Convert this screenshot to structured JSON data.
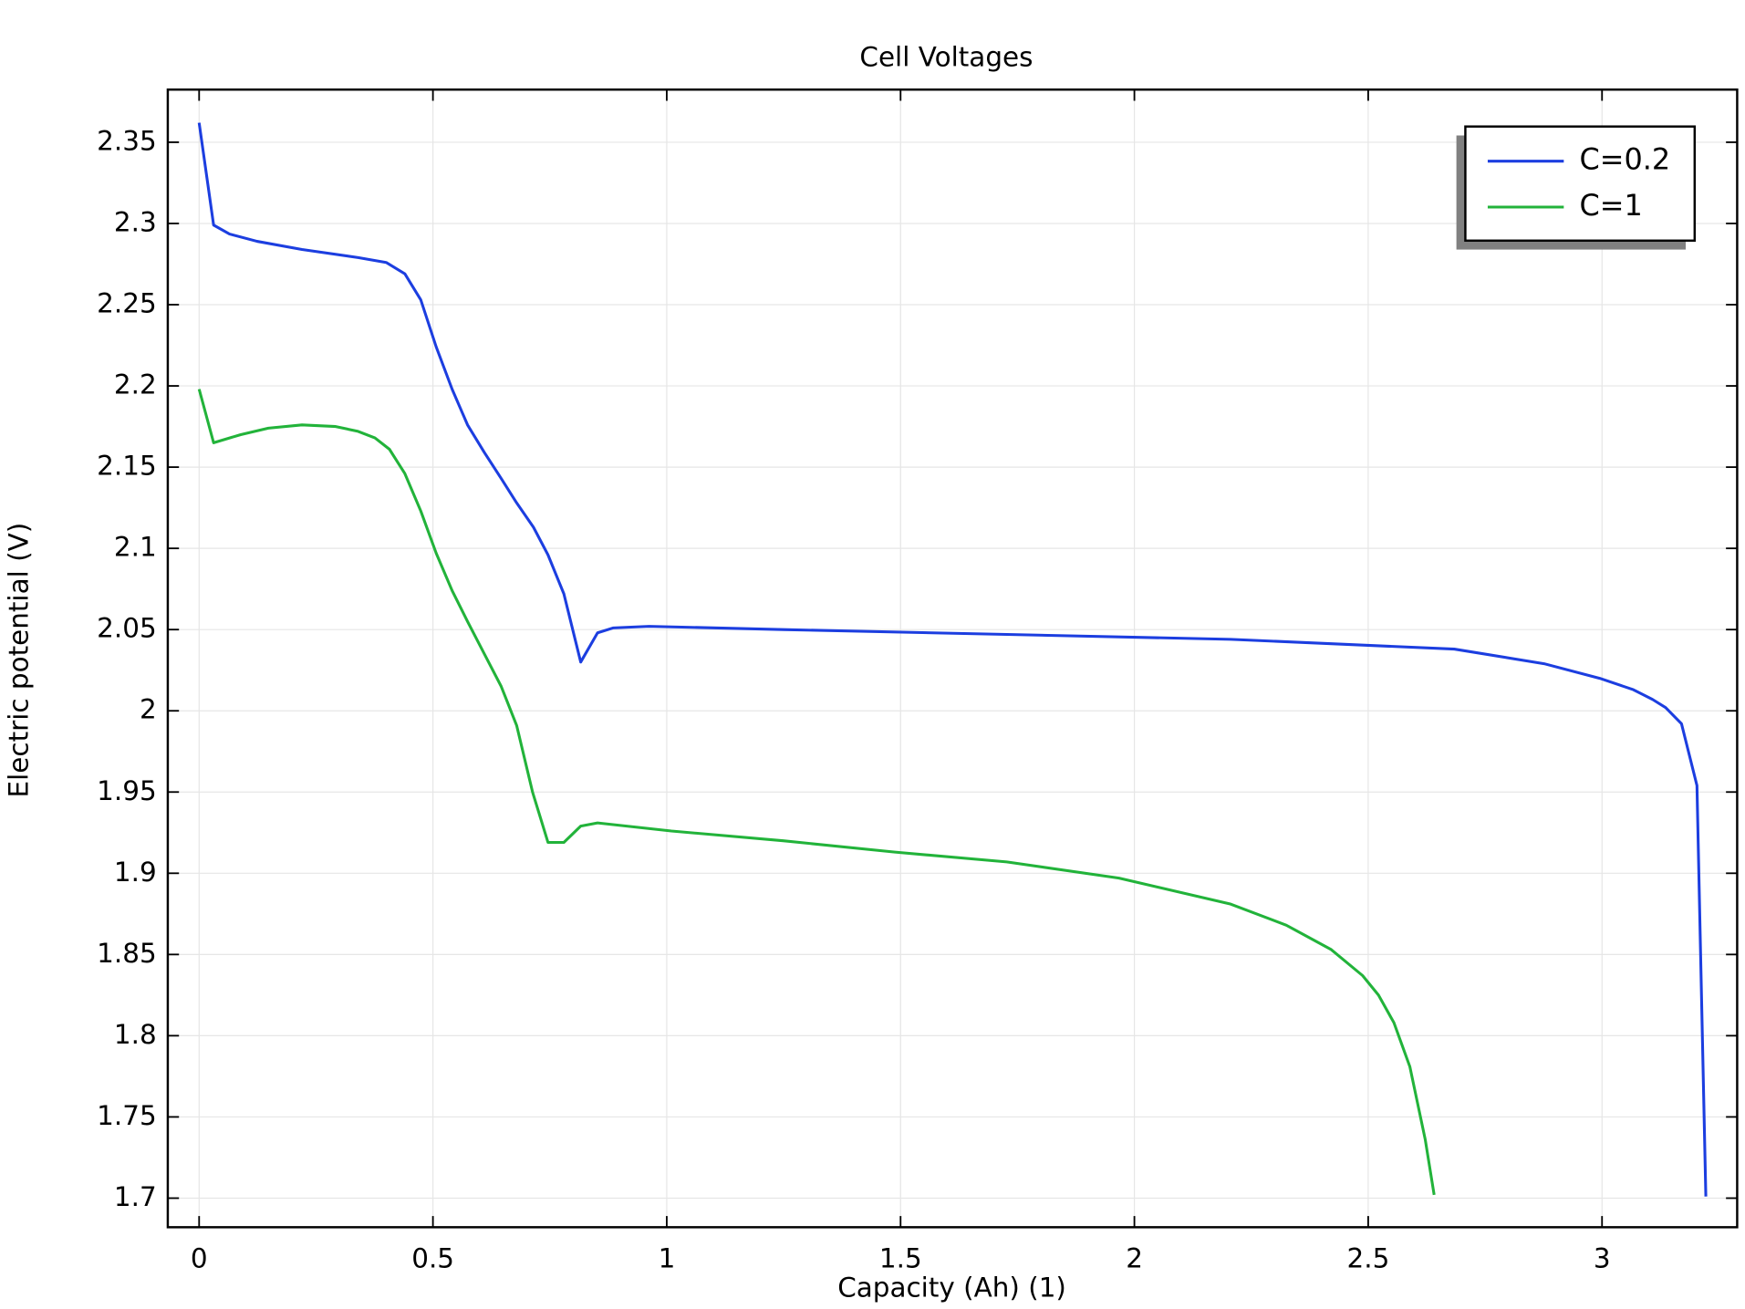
{
  "chart_data": {
    "type": "line",
    "title": "Cell Voltages",
    "x_label": "Capacity (Ah) (1)",
    "y_label": "Electric potential (V)",
    "xlim": [
      -0.067,
      3.289
    ],
    "ylim": [
      1.6821,
      2.3824
    ],
    "xticks": [
      0,
      0.5,
      1,
      1.5,
      2,
      2.5,
      3
    ],
    "yticks": [
      1.7,
      1.75,
      1.8,
      1.85,
      1.9,
      1.95,
      2,
      2.05,
      2.1,
      2.15,
      2.2,
      2.25,
      2.3,
      2.35
    ],
    "grid": true,
    "legend": "upper right",
    "series": [
      {
        "name": "C=0.2",
        "color": "#1c3ee0",
        "x": [
          0,
          0.031,
          0.065,
          0.124,
          0.22,
          0.34,
          0.4,
          0.44,
          0.474,
          0.507,
          0.541,
          0.574,
          0.61,
          0.646,
          0.679,
          0.715,
          0.746,
          0.78,
          0.816,
          0.852,
          0.885,
          0.962,
          1.249,
          1.727,
          2.206,
          2.684,
          2.876,
          2.995,
          3.067,
          3.108,
          3.136,
          3.17,
          3.203,
          3.222
        ],
        "values": [
          2.362,
          2.299,
          2.2935,
          2.289,
          2.284,
          2.279,
          2.276,
          2.269,
          2.253,
          2.224,
          2.198,
          2.176,
          2.159,
          2.143,
          2.128,
          2.113,
          2.096,
          2.072,
          2.03,
          2.048,
          2.051,
          2.052,
          2.05,
          2.047,
          2.044,
          2.038,
          2.029,
          2.02,
          2.013,
          2.007,
          2.002,
          1.992,
          1.954,
          1.701
        ]
      },
      {
        "name": "C=1",
        "color": "#22b33a",
        "x": [
          0,
          0.031,
          0.089,
          0.148,
          0.22,
          0.292,
          0.34,
          0.376,
          0.407,
          0.44,
          0.474,
          0.507,
          0.541,
          0.574,
          0.61,
          0.646,
          0.679,
          0.713,
          0.746,
          0.78,
          0.816,
          0.852,
          1.01,
          1.249,
          1.488,
          1.727,
          1.967,
          2.206,
          2.325,
          2.421,
          2.488,
          2.522,
          2.555,
          2.589,
          2.622,
          2.641
        ],
        "values": [
          2.198,
          2.165,
          2.17,
          2.174,
          2.176,
          2.175,
          2.172,
          2.168,
          2.161,
          2.146,
          2.123,
          2.097,
          2.074,
          2.055,
          2.035,
          2.015,
          1.991,
          1.95,
          1.919,
          1.919,
          1.929,
          1.931,
          1.926,
          1.92,
          1.913,
          1.907,
          1.897,
          1.881,
          1.868,
          1.853,
          1.837,
          1.825,
          1.808,
          1.781,
          1.736,
          1.702
        ]
      }
    ]
  }
}
